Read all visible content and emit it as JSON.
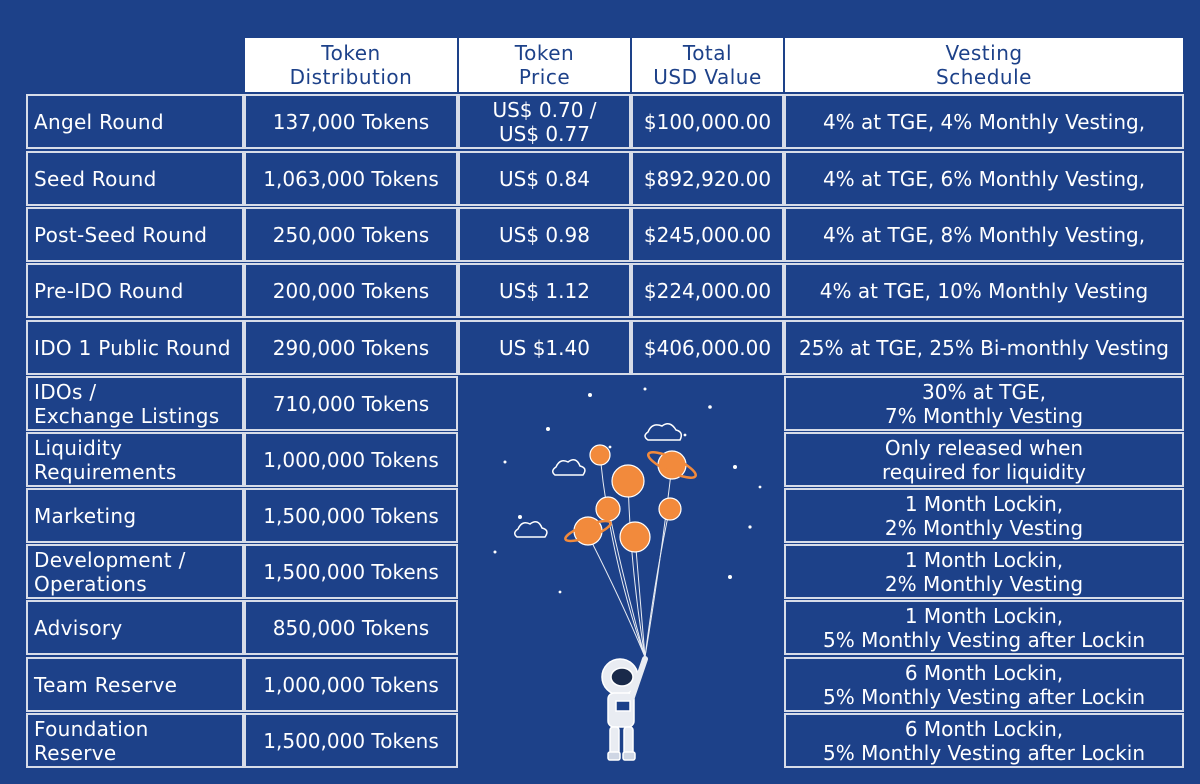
{
  "headers": {
    "distribution": "Token\nDistribution",
    "price": "Token\nPrice",
    "usd": "Total\nUSD Value",
    "vesting": "Vesting\nSchedule"
  },
  "rows": [
    {
      "label": "Angel Round",
      "tokens": "137,000 Tokens",
      "price": "US$ 0.70 /\nUS$ 0.77",
      "usd": "$100,000.00",
      "vesting": "4% at TGE, 4% Monthly Vesting,"
    },
    {
      "label": "Seed Round",
      "tokens": "1,063,000 Tokens",
      "price": "US$ 0.84",
      "usd": "$892,920.00",
      "vesting": "4% at TGE, 6% Monthly Vesting,"
    },
    {
      "label": "Post-Seed Round",
      "tokens": "250,000 Tokens",
      "price": "US$ 0.98",
      "usd": "$245,000.00",
      "vesting": "4% at TGE, 8% Monthly Vesting,"
    },
    {
      "label": "Pre-IDO Round",
      "tokens": "200,000 Tokens",
      "price": "US$ 1.12",
      "usd": "$224,000.00",
      "vesting": "4% at TGE, 10% Monthly Vesting"
    },
    {
      "label": "IDO 1 Public Round",
      "tokens": "290,000 Tokens",
      "price": "US $1.40",
      "usd": "$406,000.00",
      "vesting": "25% at TGE, 25% Bi-monthly Vesting"
    },
    {
      "label": "IDOs /\nExchange Listings",
      "tokens": "710,000 Tokens",
      "vesting": "30% at TGE,\n7% Monthly Vesting"
    },
    {
      "label": "Liquidity\nRequirements",
      "tokens": "1,000,000 Tokens",
      "vesting": "Only released when\nrequired for liquidity"
    },
    {
      "label": "Marketing",
      "tokens": "1,500,000 Tokens",
      "vesting": "1 Month Lockin,\n2% Monthly Vesting"
    },
    {
      "label": "Development /\nOperations",
      "tokens": "1,500,000 Tokens",
      "vesting": "1 Month Lockin,\n2% Monthly Vesting"
    },
    {
      "label": "Advisory",
      "tokens": "850,000 Tokens",
      "vesting": "1 Month Lockin,\n5% Monthly Vesting after Lockin"
    },
    {
      "label": "Team Reserve",
      "tokens": "1,000,000 Tokens",
      "vesting": "6 Month Lockin,\n5% Monthly Vesting after Lockin"
    },
    {
      "label": "Foundation\nReserve",
      "tokens": "1,500,000 Tokens",
      "vesting": "6 Month Lockin,\n5% Monthly Vesting after Lockin"
    }
  ],
  "colors": {
    "background": "#1d4189",
    "header_bg": "#ffffff",
    "header_text": "#1d4189",
    "planet": "#f28a3c",
    "border": "#d7dce8"
  },
  "illustration": {
    "icon": "astronaut-with-planet-balloons-icon"
  }
}
